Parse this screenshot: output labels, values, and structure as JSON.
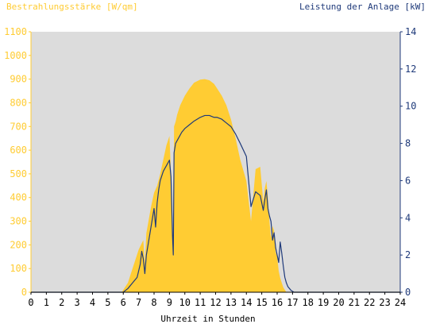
{
  "chart_data": {
    "type": "area",
    "ylabel_left": "Bestrahlungsstärke [W/qm]",
    "ylabel_right": "Leistung der Anlage [kW]",
    "xlabel": "Uhrzeit in Stunden",
    "xlim": [
      0,
      24
    ],
    "ylim_left": [
      0,
      1100
    ],
    "ylim_right": [
      0,
      14
    ],
    "x_ticks": [
      "0",
      "1",
      "2",
      "3",
      "4",
      "5",
      "6",
      "7",
      "8",
      "9",
      "10",
      "11",
      "12",
      "13",
      "14",
      "15",
      "16",
      "17",
      "18",
      "19",
      "20",
      "21",
      "22",
      "23",
      "24"
    ],
    "y_ticks_left": [
      "0",
      "100",
      "200",
      "300",
      "400",
      "500",
      "600",
      "700",
      "800",
      "900",
      "1000",
      "1100"
    ],
    "y_ticks_right": [
      "0",
      "2",
      "4",
      "6",
      "8",
      "10",
      "12",
      "14"
    ],
    "grid": false,
    "colors": {
      "plot_background": "#DCDCDC",
      "irradiance_fill": "#FFCC33",
      "power_line": "#1F3A7A",
      "left_axis": "#FFCC33",
      "right_axis": "#1F3A7A"
    },
    "series": [
      {
        "axis": "left",
        "style": "area",
        "x": [
          0,
          5.9,
          6.0,
          6.3,
          6.6,
          7.0,
          7.3,
          7.4,
          7.5,
          7.8,
          8.0,
          8.2,
          8.4,
          8.6,
          8.8,
          9.0,
          9.1,
          9.2,
          9.25,
          9.3,
          9.4,
          9.5,
          9.7,
          10.0,
          10.3,
          10.6,
          11.0,
          11.3,
          11.6,
          11.9,
          12.1,
          12.4,
          12.7,
          13.0,
          13.3,
          13.6,
          14.0,
          14.3,
          14.6,
          14.9,
          15.1,
          15.2,
          15.3,
          15.4,
          15.5,
          15.6,
          15.7,
          15.8,
          15.9,
          16.0,
          16.1,
          16.2,
          16.3,
          16.4,
          16.5,
          16.6,
          16.7,
          16.8,
          16.9,
          17.0,
          17.1,
          17.2,
          17.3,
          17.4,
          17.5,
          17.6,
          17.7,
          17.8,
          18.0,
          18.2,
          18.4,
          18.6,
          18.8,
          19.0,
          19.2,
          24
        ],
        "y": [
          0,
          0,
          10,
          40,
          100,
          180,
          220,
          120,
          250,
          360,
          420,
          450,
          500,
          560,
          620,
          660,
          500,
          200,
          150,
          700,
          720,
          750,
          790,
          830,
          860,
          885,
          898,
          900,
          895,
          880,
          860,
          830,
          790,
          730,
          650,
          560,
          470,
          300,
          520,
          530,
          380,
          440,
          470,
          400,
          300,
          230,
          280,
          260,
          170,
          150,
          90,
          60,
          40,
          20,
          10,
          0,
          0,
          0,
          0,
          0,
          0,
          0,
          0,
          0,
          0,
          0,
          0,
          0,
          0,
          0,
          0,
          0,
          0,
          0,
          0,
          0
        ]
      },
      {
        "axis": "right",
        "style": "line",
        "x": [
          0,
          6.0,
          6.3,
          6.6,
          6.9,
          7.1,
          7.2,
          7.3,
          7.4,
          7.5,
          7.6,
          7.8,
          8.0,
          8.1,
          8.2,
          8.3,
          8.4,
          8.6,
          8.8,
          9.0,
          9.1,
          9.2,
          9.25,
          9.3,
          9.4,
          9.6,
          9.8,
          10.0,
          10.3,
          10.6,
          11.0,
          11.3,
          11.6,
          11.9,
          12.1,
          12.4,
          12.7,
          13.0,
          13.3,
          13.6,
          14.0,
          14.3,
          14.6,
          14.9,
          15.1,
          15.2,
          15.3,
          15.4,
          15.5,
          15.6,
          15.7,
          15.8,
          15.9,
          16.0,
          16.1,
          16.2,
          16.3,
          16.4,
          16.5,
          16.6,
          16.7,
          16.8,
          16.9,
          17.0,
          17.1,
          17.2,
          17.3,
          17.5,
          17.7,
          18.0,
          18.3,
          18.6,
          19.0,
          24
        ],
        "y": [
          0,
          0,
          0.2,
          0.5,
          0.8,
          1.5,
          2.2,
          1.8,
          1.0,
          2.0,
          2.5,
          3.5,
          4.5,
          3.5,
          4.8,
          5.5,
          6.0,
          6.5,
          6.8,
          7.1,
          6.2,
          3.0,
          2.0,
          7.5,
          8.0,
          8.3,
          8.6,
          8.8,
          9.0,
          9.2,
          9.4,
          9.5,
          9.5,
          9.4,
          9.4,
          9.3,
          9.1,
          8.9,
          8.5,
          8.0,
          7.3,
          4.6,
          5.4,
          5.2,
          4.4,
          5.0,
          5.5,
          4.5,
          4.1,
          3.8,
          2.8,
          3.2,
          2.4,
          2.0,
          1.6,
          2.7,
          2.1,
          1.4,
          0.8,
          0.5,
          0.3,
          0.2,
          0.1,
          0.05,
          0,
          0,
          0,
          0,
          0,
          0,
          0,
          0,
          0,
          0
        ]
      }
    ]
  }
}
